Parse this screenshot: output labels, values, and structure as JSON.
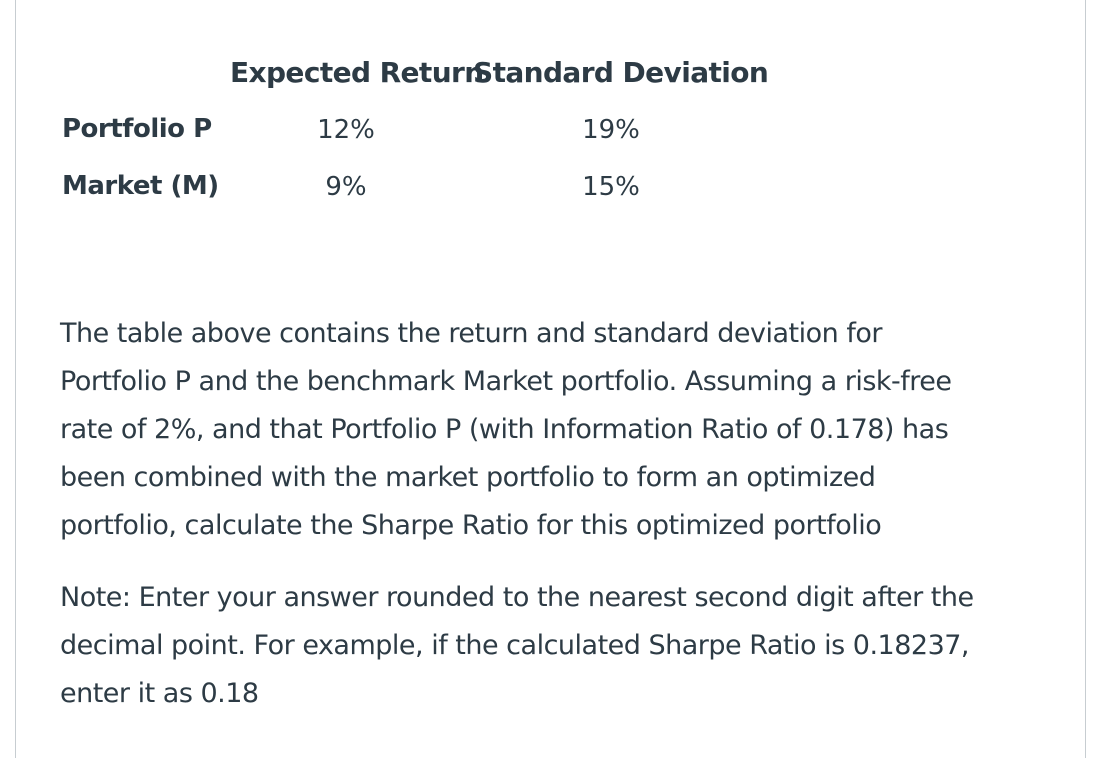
{
  "table": {
    "headers": [
      "Expected Return",
      "Standard Deviation"
    ],
    "rows": [
      {
        "label": "Portfolio P",
        "expected_return": "12%",
        "standard_deviation": "19%"
      },
      {
        "label": "Market (M)",
        "expected_return": "9%",
        "standard_deviation": "15%"
      }
    ]
  },
  "question": {
    "lines": [
      "The table above contains the return and standard deviation for",
      "Portfolio P and the benchmark Market portfolio.  Assuming a risk-free",
      "rate of 2%, and that Portfolio P (with Information Ratio of 0.178) has",
      "been combined with the market portfolio to form an optimized",
      "portfolio, calculate the Sharpe Ratio for this optimized portfolio"
    ]
  },
  "note": {
    "lines": [
      "Note: Enter your answer rounded to the nearest second digit after the",
      "decimal point.  For example, if the calculated Sharpe Ratio is 0.18237,",
      "enter it as 0.18"
    ]
  }
}
